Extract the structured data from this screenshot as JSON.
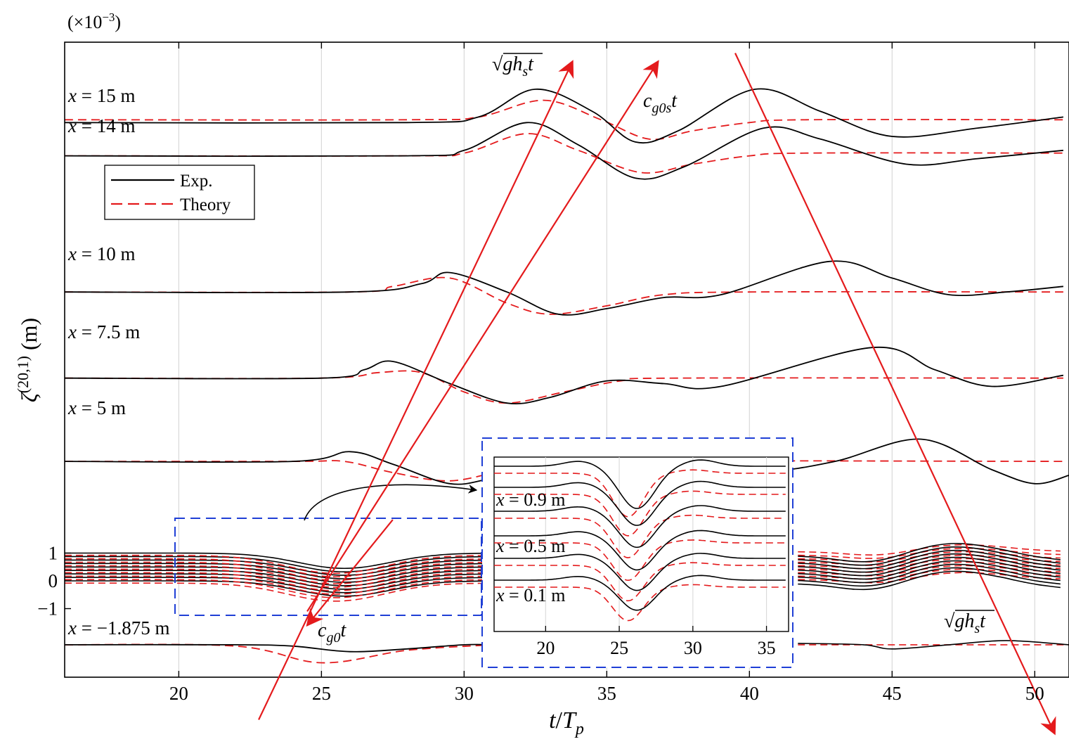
{
  "chart_data": {
    "type": "line",
    "title": "",
    "scale_note_prefix": "(×10",
    "scale_note_exp": "−3",
    "scale_note_suffix": ")",
    "xlabel": {
      "main": "t",
      "sep": "/",
      "sub_base": "T",
      "sub": "p"
    },
    "ylabel": {
      "symbol": "ζ",
      "sup": "(20,1)",
      "unit": " (m)"
    },
    "xlim": [
      16,
      51.2
    ],
    "xticks": [
      20,
      25,
      30,
      35,
      40,
      45,
      50
    ],
    "yticks": [
      {
        "label": "1",
        "value": 1
      },
      {
        "label": "0",
        "value": 0
      },
      {
        "label": "−1",
        "value": -1
      }
    ],
    "grid": "vertical",
    "legend": {
      "placement": "upper-left",
      "entries": [
        {
          "label": "Exp.",
          "color": "#000000",
          "style": "solid"
        },
        {
          "label": "Theory",
          "color": "#e41a1c",
          "style": "dashed"
        }
      ]
    },
    "colors": {
      "exp": "#000000",
      "theory": "#e41a1c",
      "arrow": "#e41a1c",
      "box": "#1f3fd6",
      "grid": "#d9d9d9"
    },
    "traces": [
      {
        "label": "x = 15 m",
        "pos": "15 m",
        "baseline_ms": 16.5,
        "exp": [
          [
            16,
            16.5
          ],
          [
            28,
            16.5
          ],
          [
            30.5,
            16.7
          ],
          [
            32.5,
            17.7
          ],
          [
            34.5,
            16.9
          ],
          [
            36,
            15.8
          ],
          [
            37.5,
            16.2
          ],
          [
            40.2,
            17.7
          ],
          [
            42.5,
            16.9
          ],
          [
            45,
            16.0
          ],
          [
            48,
            16.3
          ],
          [
            51,
            16.7
          ]
        ],
        "theory": [
          [
            16,
            16.6
          ],
          [
            28,
            16.6
          ],
          [
            30.5,
            16.7
          ],
          [
            32.8,
            17.3
          ],
          [
            34.8,
            16.6
          ],
          [
            36.5,
            15.9
          ],
          [
            38,
            16.2
          ],
          [
            40,
            16.5
          ],
          [
            42,
            16.6
          ],
          [
            51,
            16.6
          ]
        ]
      },
      {
        "label": "x = 14 m",
        "pos": "14 m",
        "baseline_ms": 15.3,
        "exp": [
          [
            16,
            15.3
          ],
          [
            28,
            15.3
          ],
          [
            30,
            15.5
          ],
          [
            32.2,
            16.5
          ],
          [
            34,
            15.7
          ],
          [
            36,
            14.5
          ],
          [
            37.7,
            14.9
          ],
          [
            40.5,
            16.3
          ],
          [
            42.5,
            15.9
          ],
          [
            45.5,
            15.0
          ],
          [
            48,
            15.2
          ],
          [
            51,
            15.5
          ]
        ],
        "theory": [
          [
            16,
            15.3
          ],
          [
            28,
            15.3
          ],
          [
            30,
            15.4
          ],
          [
            32.2,
            16.1
          ],
          [
            34,
            15.5
          ],
          [
            36.2,
            14.7
          ],
          [
            38,
            15.0
          ],
          [
            40,
            15.3
          ],
          [
            42,
            15.4
          ],
          [
            51,
            15.4
          ]
        ]
      },
      {
        "label": "x = 10 m",
        "pos": "10 m",
        "baseline_ms": 10.4,
        "exp": [
          [
            16,
            10.4
          ],
          [
            26,
            10.4
          ],
          [
            28.5,
            10.7
          ],
          [
            29.5,
            11.1
          ],
          [
            31.5,
            10.4
          ],
          [
            33.3,
            9.6
          ],
          [
            35,
            9.8
          ],
          [
            37,
            10.2
          ],
          [
            39,
            10.3
          ],
          [
            42.8,
            11.5
          ],
          [
            45,
            10.9
          ],
          [
            47,
            10.3
          ],
          [
            49,
            10.4
          ],
          [
            51,
            10.6
          ]
        ],
        "theory": [
          [
            16,
            10.4
          ],
          [
            26,
            10.4
          ],
          [
            27.5,
            10.6
          ],
          [
            29.5,
            10.9
          ],
          [
            31.5,
            10.0
          ],
          [
            33,
            9.6
          ],
          [
            35,
            9.9
          ],
          [
            37,
            10.3
          ],
          [
            40,
            10.4
          ],
          [
            51,
            10.4
          ]
        ]
      },
      {
        "label": "x = 7.5 m",
        "pos": "7.5 m",
        "baseline_ms": 7.3,
        "exp": [
          [
            16,
            7.3
          ],
          [
            25,
            7.3
          ],
          [
            26.5,
            7.6
          ],
          [
            27.5,
            7.9
          ],
          [
            29.5,
            7.1
          ],
          [
            31.5,
            6.4
          ],
          [
            33,
            6.6
          ],
          [
            35,
            7.2
          ],
          [
            37,
            7.1
          ],
          [
            39,
            7.0
          ],
          [
            44.3,
            8.4
          ],
          [
            46.5,
            7.6
          ],
          [
            48.5,
            7.0
          ],
          [
            51,
            7.4
          ]
        ],
        "theory": [
          [
            16,
            7.3
          ],
          [
            25,
            7.3
          ],
          [
            27,
            7.5
          ],
          [
            28.5,
            7.5
          ],
          [
            30,
            6.8
          ],
          [
            31.5,
            6.4
          ],
          [
            33.5,
            6.8
          ],
          [
            35.5,
            7.2
          ],
          [
            37.5,
            7.3
          ],
          [
            51,
            7.3
          ]
        ]
      },
      {
        "label": "x = 5 m",
        "pos": "5 m",
        "baseline_ms": 4.3,
        "exp": [
          [
            16,
            4.3
          ],
          [
            24,
            4.3
          ],
          [
            26,
            4.65
          ],
          [
            27.5,
            4.2
          ],
          [
            29.5,
            3.5
          ],
          [
            31,
            3.7
          ],
          [
            33,
            4.15
          ],
          [
            35,
            4.35
          ],
          [
            38,
            4.3
          ],
          [
            40.5,
            3.95
          ],
          [
            43,
            4.3
          ],
          [
            46,
            5.1
          ],
          [
            48.5,
            4.0
          ],
          [
            50,
            3.5
          ],
          [
            51.2,
            3.8
          ]
        ],
        "theory": [
          [
            16,
            4.3
          ],
          [
            24,
            4.3
          ],
          [
            25.8,
            4.3
          ],
          [
            27.5,
            3.9
          ],
          [
            29.5,
            3.6
          ],
          [
            31.5,
            4.0
          ],
          [
            33.5,
            4.3
          ],
          [
            51,
            4.3
          ]
        ]
      },
      {
        "label": "x = −1.875 m",
        "pos": "−1.875 m",
        "baseline_ms": -2.3,
        "exp": [
          [
            16,
            -2.3
          ],
          [
            22,
            -2.3
          ],
          [
            24,
            -2.35
          ],
          [
            26,
            -2.55
          ],
          [
            28,
            -2.45
          ],
          [
            30,
            -2.3
          ],
          [
            31,
            -2.3
          ]
        ],
        "theory": [
          [
            16,
            -2.3
          ],
          [
            22,
            -2.35
          ],
          [
            25,
            -2.95
          ],
          [
            28,
            -2.5
          ],
          [
            31,
            -2.3
          ]
        ]
      }
    ],
    "near_field_probes": {
      "count": 9,
      "spacing_ms": 0.125,
      "dip_ms": -0.55,
      "dip_center_tp": 25.8
    },
    "arrows": [
      {
        "label_main": "gh",
        "label_sub": "s",
        "label_tail": "t",
        "from": [
          22.8,
          -5.0
        ],
        "to": [
          33.8,
          18.7
        ]
      },
      {
        "label_main": "c",
        "label_sub": "g0s",
        "label_tail": "t",
        "from": [
          24.5,
          -1.1
        ],
        "to": [
          36.8,
          18.7
        ]
      },
      {
        "label_main": "c",
        "label_sub": "g0",
        "label_tail": "t",
        "from": [
          27.5,
          2.2
        ],
        "to": [
          24.5,
          -1.6
        ]
      },
      {
        "label_main": "gh",
        "label_sub": "s",
        "label_tail": "t",
        "from": [
          39.5,
          19.0
        ],
        "to": [
          50.7,
          -5.5
        ]
      }
    ],
    "inset": {
      "xlim": [
        16.5,
        36.5
      ],
      "xticks": [
        20,
        25,
        30,
        35
      ],
      "labels": [
        {
          "text": "x = 0.9 m",
          "pos": "0.9 m"
        },
        {
          "text": "x = 0.5 m",
          "pos": "0.5 m"
        },
        {
          "text": "x = 0.1 m",
          "pos": "0.1 m"
        }
      ]
    }
  }
}
